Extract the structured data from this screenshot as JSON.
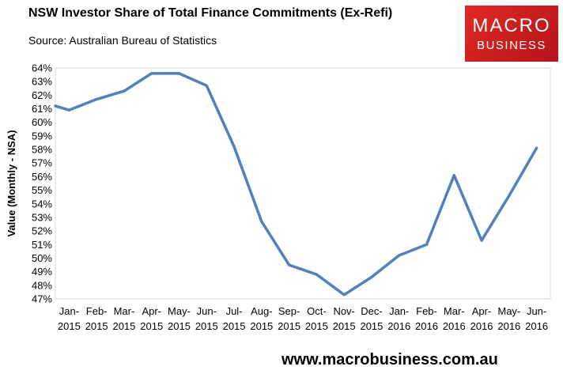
{
  "header": {
    "title": "NSW Investor Share of Total Finance Commitments (Ex-Refi)",
    "subtitle": "Source: Australian Bureau of Statistics"
  },
  "logo": {
    "line1": "MACRO",
    "line2": "BUSINESS"
  },
  "footer": {
    "url": "www.macrobusiness.com.au"
  },
  "colors": {
    "series": "#4f81bd",
    "grid": "#d9d9d9",
    "logo_red": "#d8232a"
  },
  "chart_data": {
    "type": "line",
    "title": "NSW Investor Share of Total Finance Commitments (Ex-Refi)",
    "xlabel": "",
    "ylabel": "Value (Monthly - NSA)",
    "ylim": [
      47,
      64
    ],
    "ytick_step": 1,
    "y_unit": "%",
    "grid": false,
    "legend": "none",
    "categories": [
      [
        "Jan-",
        "2015"
      ],
      [
        "Feb-",
        "2015"
      ],
      [
        "Mar-",
        "2015"
      ],
      [
        "Apr-",
        "2015"
      ],
      [
        "May-",
        "2015"
      ],
      [
        "Jun-",
        "2015"
      ],
      [
        "Jul-",
        "2015"
      ],
      [
        "Aug-",
        "2015"
      ],
      [
        "Sep-",
        "2015"
      ],
      [
        "Oct-",
        "2015"
      ],
      [
        "Nov-",
        "2015"
      ],
      [
        "Dec-",
        "2015"
      ],
      [
        "Jan-",
        "2016"
      ],
      [
        "Feb-",
        "2016"
      ],
      [
        "Mar-",
        "2016"
      ],
      [
        "Apr-",
        "2016"
      ],
      [
        "May-",
        "2016"
      ],
      [
        "Jun-",
        "2016"
      ]
    ],
    "series": [
      {
        "values": [
          60.9,
          61.7,
          62.3,
          63.6,
          63.6,
          62.7,
          58.2,
          52.7,
          49.5,
          48.8,
          47.3,
          48.6,
          50.2,
          51.0,
          56.1,
          51.3,
          54.6,
          58.1
        ],
        "start_value": 61.2
      }
    ]
  }
}
